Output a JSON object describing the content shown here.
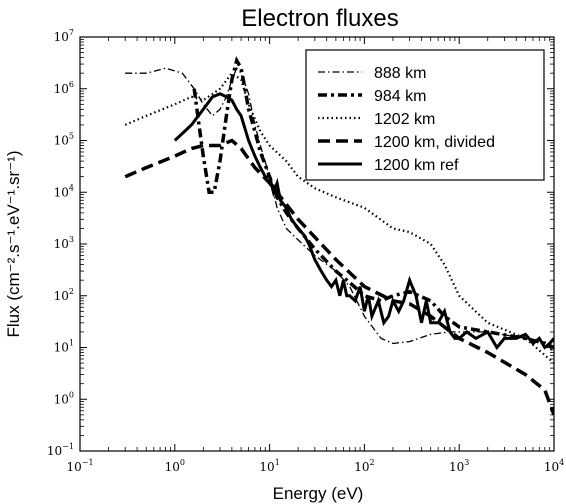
{
  "chart_data": {
    "type": "line",
    "title": "Electron fluxes",
    "xlabel": "Energy (eV)",
    "ylabel": "Flux (cm⁻².s⁻¹.eV⁻¹.sr⁻¹)",
    "x_scale": "log",
    "y_scale": "log",
    "xlim": [
      0.1,
      10000
    ],
    "ylim": [
      0.1,
      10000000
    ],
    "x_ticks": [
      {
        "value": 0.1,
        "base": "10",
        "exp": "−1"
      },
      {
        "value": 1,
        "base": "10",
        "exp": "0"
      },
      {
        "value": 10,
        "base": "10",
        "exp": "1"
      },
      {
        "value": 100,
        "base": "10",
        "exp": "2"
      },
      {
        "value": 1000,
        "base": "10",
        "exp": "3"
      },
      {
        "value": 10000,
        "base": "10",
        "exp": "4"
      }
    ],
    "y_ticks": [
      {
        "value": 0.1,
        "base": "10",
        "exp": "−1"
      },
      {
        "value": 1,
        "base": "10",
        "exp": "0"
      },
      {
        "value": 10,
        "base": "10",
        "exp": "1"
      },
      {
        "value": 100,
        "base": "10",
        "exp": "2"
      },
      {
        "value": 1000,
        "base": "10",
        "exp": "3"
      },
      {
        "value": 10000,
        "base": "10",
        "exp": "4"
      },
      {
        "value": 100000,
        "base": "10",
        "exp": "5"
      },
      {
        "value": 1000000,
        "base": "10",
        "exp": "6"
      },
      {
        "value": 10000000,
        "base": "10",
        "exp": "7"
      }
    ],
    "grid": false,
    "legend": "top-right",
    "series": [
      {
        "name": "888 km",
        "style": "dashdot-fine",
        "x": [
          0.3,
          0.5,
          0.8,
          1.2,
          1.6,
          2.0,
          2.5,
          3.0,
          3.5,
          4.0,
          4.5,
          5.0,
          6.0,
          7.0,
          8.0,
          10,
          12,
          15,
          20,
          30,
          50,
          70,
          100,
          150,
          200,
          300,
          500,
          800,
          1000,
          2000,
          5000,
          8000,
          10000
        ],
        "y": [
          2000000,
          2000000,
          2500000,
          2000000,
          1000000,
          500000,
          300000,
          400000,
          700000,
          1500000,
          2500000,
          2000000,
          800000,
          200000,
          80000,
          20000,
          5000,
          2000,
          1200,
          600,
          300,
          150,
          40,
          15,
          12,
          13,
          18,
          20,
          20,
          20,
          15,
          13,
          8
        ]
      },
      {
        "name": "984 km",
        "style": "dashdot-bold",
        "x": [
          1.6,
          1.8,
          2.0,
          2.3,
          2.6,
          3.0,
          3.5,
          4.0,
          4.5,
          5.0,
          5.5,
          6.0,
          7.0,
          8.0,
          10,
          12,
          15,
          20,
          30,
          50,
          70,
          100,
          150,
          200,
          300,
          500,
          700,
          1000,
          2000,
          5000,
          8000,
          10000
        ],
        "y": [
          1000000,
          200000,
          50000,
          10000,
          10000,
          40000,
          300000,
          1500000,
          3500000,
          2500000,
          1000000,
          400000,
          150000,
          60000,
          20000,
          8000,
          4000,
          2000,
          800,
          300,
          180,
          100,
          80,
          100,
          120,
          80,
          40,
          25,
          20,
          15,
          12,
          10
        ]
      },
      {
        "name": "1202 km",
        "style": "dotted",
        "x": [
          0.3,
          0.5,
          1.0,
          1.5,
          2.0,
          3.0,
          4.0,
          5.0,
          6.0,
          8.0,
          10,
          15,
          20,
          30,
          50,
          100,
          200,
          300,
          500,
          700,
          1000,
          2000,
          5000,
          10000
        ],
        "y": [
          200000,
          300000,
          500000,
          700000,
          600000,
          1000000,
          2000000,
          1500000,
          500000,
          150000,
          80000,
          40000,
          20000,
          12000,
          8000,
          5000,
          2000,
          1700,
          1000,
          400,
          100,
          30,
          15,
          5
        ]
      },
      {
        "name": "1200 km, divided",
        "style": "dashed",
        "x": [
          0.3,
          0.5,
          1.0,
          1.5,
          2.0,
          3.0,
          4.0,
          5.0,
          7.0,
          10,
          20,
          50,
          100,
          200,
          300,
          500,
          1000,
          2000,
          5000,
          8000,
          10000
        ],
        "y": [
          20000,
          30000,
          50000,
          70000,
          80000,
          80000,
          100000,
          70000,
          30000,
          15000,
          3000,
          500,
          150,
          80,
          70,
          40,
          15,
          8,
          3,
          1.5,
          0.5
        ]
      },
      {
        "name": "1200 km ref",
        "style": "solid",
        "x": [
          1.0,
          1.5,
          2.0,
          2.5,
          3.0,
          3.5,
          4.0,
          4.5,
          5.0,
          6.0,
          7.0,
          8.0,
          9.0,
          10,
          11,
          12,
          13,
          15,
          17,
          20,
          23,
          26,
          30,
          35,
          40,
          45,
          50,
          55,
          60,
          65,
          70,
          80,
          90,
          100,
          110,
          120,
          140,
          160,
          180,
          200,
          230,
          260,
          300,
          350,
          400,
          450,
          500,
          600,
          700,
          800,
          900,
          1000,
          1200,
          1500,
          2000,
          2500,
          3000,
          4000,
          5000,
          6000,
          7000,
          8000,
          9000,
          10000
        ],
        "y": [
          100000,
          200000,
          400000,
          700000,
          800000,
          700000,
          600000,
          400000,
          300000,
          100000,
          50000,
          30000,
          20000,
          20000,
          10000,
          15000,
          7000,
          5000,
          3000,
          2000,
          1500,
          1000,
          500,
          300,
          200,
          150,
          200,
          100,
          200,
          100,
          100,
          80,
          150,
          50,
          100,
          40,
          80,
          30,
          40,
          80,
          50,
          80,
          200,
          100,
          30,
          80,
          30,
          30,
          50,
          20,
          15,
          15,
          20,
          15,
          20,
          10,
          15,
          15,
          18,
          12,
          15,
          10,
          12,
          15
        ]
      }
    ]
  }
}
